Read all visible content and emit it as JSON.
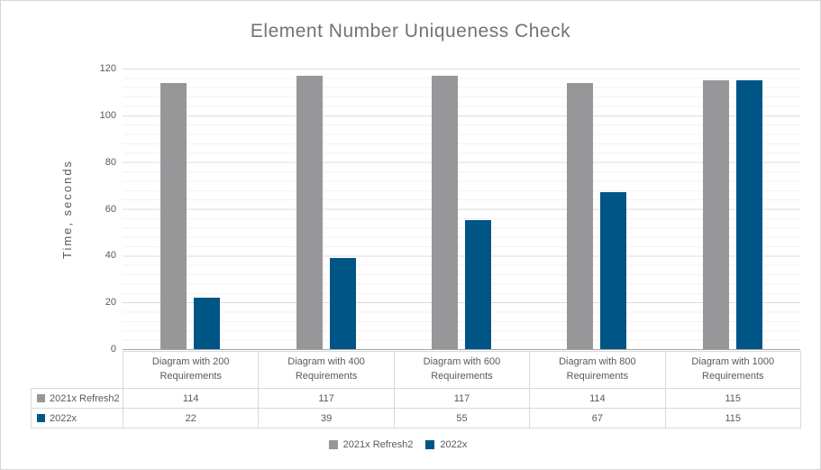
{
  "page": {
    "background": "#ffffff",
    "border_color": "#d6d6d6"
  },
  "chart_data": {
    "type": "bar",
    "title": "Element Number Uniqueness Check",
    "xlabel": "",
    "ylabel": "Time, seconds",
    "categories": [
      "Diagram with 200 Requirements",
      "Diagram with 400 Requirements",
      "Diagram with 600 Requirements",
      "Diagram with 800 Requirements",
      "Diagram with 1000 Requirements"
    ],
    "series": [
      {
        "name": "2021x Refresh2",
        "color": "#97979A",
        "values": [
          114,
          117,
          117,
          114,
          115
        ]
      },
      {
        "name": "2022x",
        "color": "#005587",
        "values": [
          22,
          39,
          55,
          67,
          115
        ]
      }
    ],
    "ylim": [
      0,
      120
    ],
    "yticks": [
      0,
      20,
      40,
      60,
      80,
      100,
      120
    ],
    "ytick_step": 20,
    "minor_grid_step": 4,
    "grid": "horizontal major and minor gridlines",
    "legend_position": "bottom",
    "show_data_table": true,
    "colors": {
      "title_text": "#737373",
      "axis_text": "#595959",
      "gridline_major": "#dcdcdc",
      "gridline_minor": "#f2f2f2",
      "axis_line": "#a6a6a6",
      "table_border": "#d9d9d9"
    }
  }
}
